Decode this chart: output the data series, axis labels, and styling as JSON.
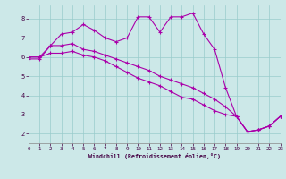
{
  "xlabel": "Windchill (Refroidissement éolien,°C)",
  "xlim": [
    0,
    23
  ],
  "ylim": [
    1.5,
    8.7
  ],
  "yticks": [
    2,
    3,
    4,
    5,
    6,
    7,
    8
  ],
  "xticks": [
    0,
    1,
    2,
    3,
    4,
    5,
    6,
    7,
    8,
    9,
    10,
    11,
    12,
    13,
    14,
    15,
    16,
    17,
    18,
    19,
    20,
    21,
    22,
    23
  ],
  "bg_color": "#cce8e8",
  "line_color": "#aa00aa",
  "grid_color": "#99cccc",
  "line1_x": [
    0,
    1,
    2,
    3,
    4,
    5,
    6,
    7,
    8,
    9,
    10,
    11,
    12,
    13,
    14,
    15,
    16,
    17,
    18,
    19,
    20,
    21,
    22,
    23
  ],
  "line1_y": [
    5.9,
    5.9,
    6.6,
    7.2,
    7.3,
    7.7,
    7.4,
    7.0,
    6.8,
    7.0,
    8.1,
    8.1,
    7.3,
    8.1,
    8.1,
    8.3,
    7.2,
    6.4,
    4.4,
    2.9,
    2.1,
    2.2,
    2.4,
    2.9
  ],
  "line2_x": [
    0,
    1,
    2,
    3,
    4,
    5,
    6,
    7,
    8,
    9,
    10,
    11,
    12,
    13,
    14,
    15,
    16,
    17,
    18,
    19,
    20,
    21,
    22,
    23
  ],
  "line2_y": [
    6.0,
    6.0,
    6.2,
    6.2,
    6.3,
    6.1,
    6.0,
    5.8,
    5.5,
    5.2,
    4.9,
    4.7,
    4.5,
    4.2,
    3.9,
    3.8,
    3.5,
    3.2,
    3.0,
    2.9,
    2.1,
    2.2,
    2.4,
    2.9
  ],
  "line3_x": [
    0,
    1,
    2,
    3,
    4,
    5,
    6,
    7,
    8,
    9,
    10,
    11,
    12,
    13,
    14,
    15,
    16,
    17,
    18,
    19,
    20,
    21,
    22,
    23
  ],
  "line3_y": [
    6.0,
    6.0,
    6.6,
    6.6,
    6.7,
    6.4,
    6.3,
    6.1,
    5.9,
    5.7,
    5.5,
    5.3,
    5.0,
    4.8,
    4.6,
    4.4,
    4.1,
    3.8,
    3.4,
    2.9,
    2.1,
    2.2,
    2.4,
    2.9
  ]
}
